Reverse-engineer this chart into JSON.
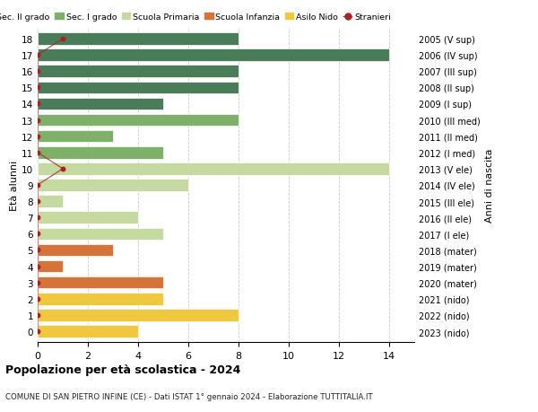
{
  "ages": [
    18,
    17,
    16,
    15,
    14,
    13,
    12,
    11,
    10,
    9,
    8,
    7,
    6,
    5,
    4,
    3,
    2,
    1,
    0
  ],
  "right_labels": [
    "2005 (V sup)",
    "2006 (IV sup)",
    "2007 (III sup)",
    "2008 (II sup)",
    "2009 (I sup)",
    "2010 (III med)",
    "2011 (II med)",
    "2012 (I med)",
    "2013 (V ele)",
    "2014 (IV ele)",
    "2015 (III ele)",
    "2016 (II ele)",
    "2017 (I ele)",
    "2018 (mater)",
    "2019 (mater)",
    "2020 (mater)",
    "2021 (nido)",
    "2022 (nido)",
    "2023 (nido)"
  ],
  "bar_values": [
    8,
    14,
    8,
    8,
    5,
    8,
    3,
    5,
    14,
    6,
    1,
    4,
    5,
    3,
    1,
    5,
    5,
    8,
    4
  ],
  "bar_colors": [
    "#4a7c59",
    "#4a7c59",
    "#4a7c59",
    "#4a7c59",
    "#4a7c59",
    "#7fb069",
    "#7fb069",
    "#7fb069",
    "#c5d9a0",
    "#c5d9a0",
    "#c5d9a0",
    "#c5d9a0",
    "#c5d9a0",
    "#d4733a",
    "#d4733a",
    "#d4733a",
    "#f0c840",
    "#f0c840",
    "#f0c840"
  ],
  "stranieri_x": [
    1,
    0,
    0,
    0,
    0,
    0,
    0,
    0,
    1,
    0,
    0,
    0,
    0,
    0,
    0,
    0,
    0,
    0,
    0
  ],
  "stranieri_color": "#aa2222",
  "legend_labels": [
    "Sec. II grado",
    "Sec. I grado",
    "Scuola Primaria",
    "Scuola Infanzia",
    "Asilo Nido",
    "Stranieri"
  ],
  "legend_colors": [
    "#4a7c59",
    "#7fb069",
    "#c5d9a0",
    "#d4733a",
    "#f0c840",
    "#aa2222"
  ],
  "ylabel_left": "Età alunni",
  "ylabel_right": "Anni di nascita",
  "xlim": [
    0,
    15
  ],
  "title": "Popolazione per età scolastica - 2024",
  "subtitle": "COMUNE DI SAN PIETRO INFINE (CE) - Dati ISTAT 1° gennaio 2024 - Elaborazione TUTTITALIA.IT",
  "bg_color": "#ffffff",
  "grid_color": "#cccccc",
  "bar_height": 0.75
}
